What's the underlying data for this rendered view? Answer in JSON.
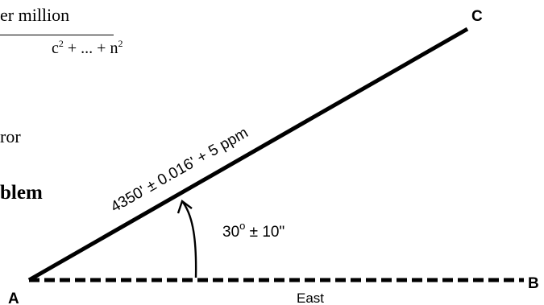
{
  "text_fragments": {
    "line1": "er million",
    "line2_base": "c",
    "line2_exp": "2",
    "line2_mid": "  + ... + n",
    "line2_exp2": "2",
    "line3": "ror",
    "line4": "blem"
  },
  "diagram": {
    "points": {
      "A": "A",
      "B": "B",
      "C": "C"
    },
    "line_ac_label": "4350' ± 0.016' + 5 ppm",
    "angle_label_value": "30",
    "angle_label_degree": "o",
    "angle_label_tolerance": " ± 10\"",
    "baseline_label": "East"
  },
  "colors": {
    "ink": "#000000",
    "background": "#ffffff"
  },
  "icons": {
    "angle_arrow": "curved-arrow-icon"
  }
}
